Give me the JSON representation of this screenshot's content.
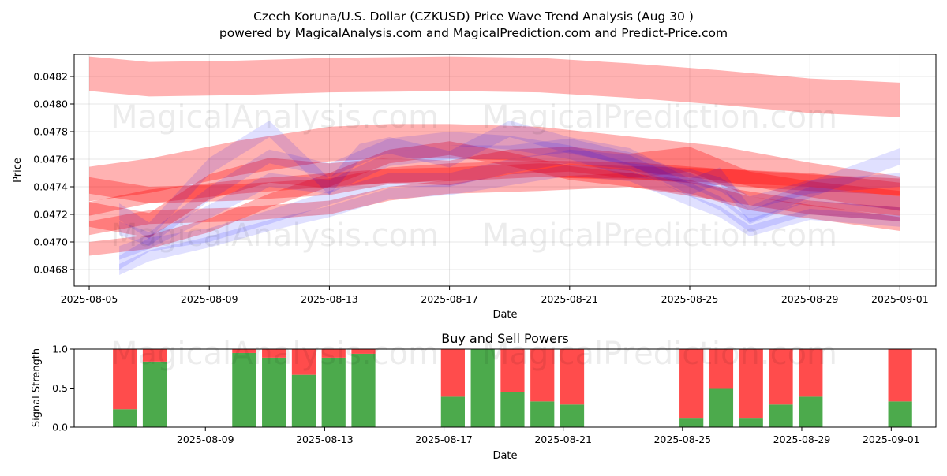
{
  "title_line1": "Czech Koruna/U.S. Dollar (CZKUSD) Price Wave Trend Analysis (Aug 30 )",
  "title_line2": "powered by MagicalAnalysis.com and MagicalPrediction.com and Predict-Price.com",
  "watermarks": [
    "MagicalAnalysis.com",
    "MagicalPrediction.com"
  ],
  "chart_data": [
    {
      "type": "area",
      "title": "",
      "xlabel": "Date",
      "ylabel": "Price",
      "x_ticks": [
        "2025-08-05",
        "2025-08-09",
        "2025-08-13",
        "2025-08-17",
        "2025-08-21",
        "2025-08-25",
        "2025-08-29",
        "2025-09-01"
      ],
      "x_tick_days": [
        0,
        4,
        8,
        12,
        16,
        20,
        24,
        27
      ],
      "xlim_days": [
        -0.5,
        28.2
      ],
      "y_ticks": [
        0.0468,
        0.047,
        0.0472,
        0.0474,
        0.0476,
        0.0478,
        0.048,
        0.0482
      ],
      "ylim": [
        0.04668,
        0.04836
      ],
      "grid": true,
      "colors": {
        "red_band": "#ff0000",
        "blue_band": "#0000ff"
      },
      "series": [
        {
          "color": "red",
          "width": 0.00025,
          "x": [
            0,
            2,
            5,
            8,
            12,
            15,
            18,
            21,
            24,
            27
          ],
          "y": [
            0.04822,
            0.04818,
            0.04819,
            0.04821,
            0.04822,
            0.04821,
            0.04817,
            0.04812,
            0.04806,
            0.04803
          ]
        },
        {
          "color": "red",
          "width": 0.00012,
          "x": [
            0,
            2,
            5,
            8,
            10,
            12,
            15,
            18,
            21,
            24,
            27
          ],
          "y": [
            0.04741,
            0.04734,
            0.04736,
            0.0474,
            0.04748,
            0.04751,
            0.04753,
            0.04752,
            0.04747,
            0.04743,
            0.0474
          ]
        },
        {
          "color": "red",
          "width": 0.0001,
          "x": [
            0,
            2,
            5,
            8,
            10,
            12,
            15,
            18,
            21,
            24,
            27
          ],
          "y": [
            0.04724,
            0.04733,
            0.0474,
            0.04745,
            0.04748,
            0.04749,
            0.04752,
            0.0475,
            0.04748,
            0.04745,
            0.04738
          ]
        },
        {
          "color": "red",
          "width": 0.00025,
          "x": [
            0,
            2,
            5,
            8,
            10,
            12,
            15,
            18,
            21,
            24,
            27
          ],
          "y": [
            0.04742,
            0.04748,
            0.04761,
            0.04771,
            0.04773,
            0.04773,
            0.04771,
            0.04764,
            0.04757,
            0.04745,
            0.04735
          ]
        },
        {
          "color": "red",
          "width": 0.0001,
          "x": [
            0,
            2,
            5,
            8,
            10,
            12,
            15,
            18,
            21,
            24,
            27
          ],
          "y": [
            0.0471,
            0.04718,
            0.0472,
            0.04725,
            0.04735,
            0.0474,
            0.04742,
            0.04745,
            0.04735,
            0.04725,
            0.0472
          ]
        },
        {
          "color": "red",
          "width": 0.00018,
          "x": [
            0,
            2,
            4,
            6,
            8,
            10,
            12,
            14,
            16,
            18,
            20,
            22,
            24,
            27
          ],
          "y": [
            0.0472,
            0.04712,
            0.0474,
            0.04752,
            0.04748,
            0.04752,
            0.0475,
            0.04758,
            0.0476,
            0.04755,
            0.0476,
            0.04742,
            0.04735,
            0.04728
          ]
        },
        {
          "color": "red",
          "width": 0.0001,
          "x": [
            0,
            2,
            4,
            6,
            8,
            10,
            12,
            14,
            16,
            18,
            20,
            22,
            24,
            27
          ],
          "y": [
            0.04695,
            0.047,
            0.04712,
            0.0473,
            0.04745,
            0.04762,
            0.04768,
            0.0476,
            0.0475,
            0.04745,
            0.0474,
            0.04728,
            0.04722,
            0.04713
          ]
        },
        {
          "color": "blue",
          "width": 0.00012,
          "x": [
            1,
            2,
            4,
            6,
            8,
            9,
            10,
            12,
            14,
            16,
            18,
            20,
            21,
            22,
            24,
            27
          ],
          "y": [
            0.04722,
            0.04708,
            0.04755,
            0.04782,
            0.0474,
            0.04765,
            0.0477,
            0.0476,
            0.04782,
            0.0477,
            0.04762,
            0.0474,
            0.04748,
            0.0472,
            0.04738,
            0.04762
          ]
        },
        {
          "color": "blue",
          "width": 0.0001,
          "x": [
            1,
            2,
            4,
            6,
            8,
            10,
            12,
            14,
            16,
            18,
            20,
            21,
            22,
            24,
            27
          ],
          "y": [
            0.0471,
            0.04702,
            0.04735,
            0.04762,
            0.04752,
            0.0477,
            0.04775,
            0.04772,
            0.04765,
            0.04752,
            0.04748,
            0.04742,
            0.04728,
            0.0474,
            0.04745
          ]
        },
        {
          "color": "blue",
          "width": 0.0001,
          "x": [
            1,
            2,
            4,
            6,
            8,
            10,
            12,
            14,
            16,
            18,
            20,
            21,
            22,
            24,
            27
          ],
          "y": [
            0.04692,
            0.047,
            0.04722,
            0.04745,
            0.0474,
            0.0476,
            0.04765,
            0.04765,
            0.0477,
            0.0476,
            0.04745,
            0.04735,
            0.04718,
            0.04735,
            0.04728
          ]
        },
        {
          "color": "blue",
          "width": 0.0001,
          "x": [
            1,
            2,
            4,
            6,
            8,
            10,
            12,
            14,
            16,
            18,
            20,
            21,
            22,
            24,
            27
          ],
          "y": [
            0.04685,
            0.04698,
            0.04705,
            0.04718,
            0.04732,
            0.04745,
            0.04745,
            0.04755,
            0.04762,
            0.04758,
            0.04738,
            0.04728,
            0.04712,
            0.04725,
            0.0472
          ]
        },
        {
          "color": "blue",
          "width": 8e-05,
          "x": [
            1,
            2,
            4,
            6,
            8,
            10,
            12,
            14,
            16,
            18,
            20,
            21,
            22,
            24,
            27
          ],
          "y": [
            0.0468,
            0.0469,
            0.047,
            0.04712,
            0.04722,
            0.04735,
            0.04738,
            0.04745,
            0.04752,
            0.04748,
            0.0473,
            0.04722,
            0.04708,
            0.0472,
            0.04715
          ]
        }
      ]
    },
    {
      "type": "bar",
      "title": "Buy and Sell Powers",
      "xlabel": "Date",
      "ylabel": "Signal Strength",
      "x_ticks": [
        "2025-08-09",
        "2025-08-13",
        "2025-08-17",
        "2025-08-21",
        "2025-08-25",
        "2025-08-29",
        "2025-09-01"
      ],
      "x_tick_days": [
        4,
        8,
        12,
        16,
        20,
        24,
        27
      ],
      "xlim_days": [
        -0.4,
        28.5
      ],
      "y_ticks": [
        "0.0",
        "0.5",
        "1.0"
      ],
      "ylim": [
        0,
        1
      ],
      "colors": {
        "buy": "#4caa4c",
        "sell": "#ff4c4c"
      },
      "x_days": [
        1.3,
        2.3,
        5.3,
        6.3,
        7.3,
        8.3,
        9.3,
        12.3,
        13.3,
        14.3,
        15.3,
        16.3,
        20.3,
        21.3,
        22.3,
        23.3,
        24.3,
        27.3
      ],
      "buy": [
        0.23,
        0.84,
        0.95,
        0.89,
        0.67,
        0.89,
        0.94,
        0.39,
        1.0,
        0.45,
        0.33,
        0.29,
        0.11,
        0.5,
        0.11,
        0.29,
        0.39,
        0.33
      ]
    }
  ]
}
